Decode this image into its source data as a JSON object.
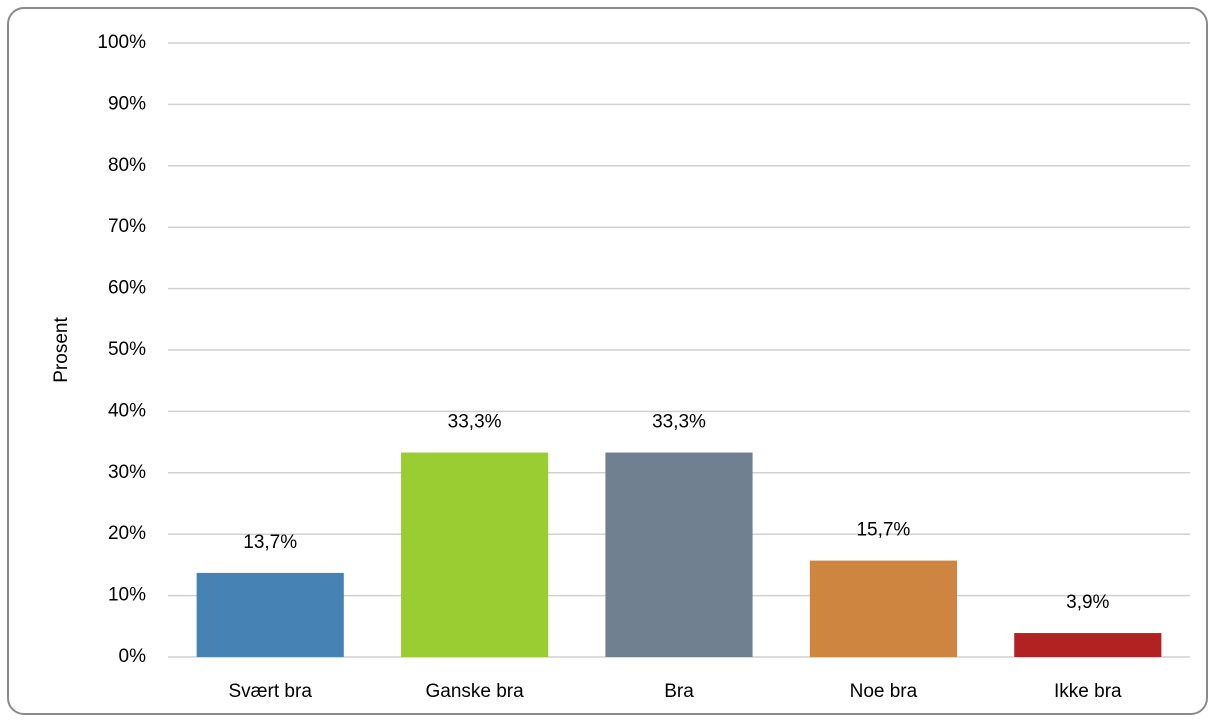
{
  "chart_data": {
    "type": "bar",
    "y_label": "Prosent",
    "categories": [
      "Svært bra",
      "Ganske bra",
      "Bra",
      "Noe bra",
      "Ikke bra"
    ],
    "values": [
      13.7,
      33.3,
      33.3,
      15.7,
      3.9
    ],
    "value_labels": [
      "13,7%",
      "33,3%",
      "33,3%",
      "15,7%",
      "3,9%"
    ],
    "colors": [
      "#4682b4",
      "#9acd32",
      "#708090",
      "#cd853f",
      "#b22222"
    ],
    "ylim": [
      0,
      100
    ],
    "yticks": [
      {
        "value": 0,
        "label": "0%"
      },
      {
        "value": 10,
        "label": "10%"
      },
      {
        "value": 20,
        "label": "20%"
      },
      {
        "value": 30,
        "label": "30%"
      },
      {
        "value": 40,
        "label": "40%"
      },
      {
        "value": 50,
        "label": "50%"
      },
      {
        "value": 60,
        "label": "60%"
      },
      {
        "value": 70,
        "label": "70%"
      },
      {
        "value": 80,
        "label": "80%"
      },
      {
        "value": 90,
        "label": "90%"
      },
      {
        "value": 100,
        "label": "100%"
      }
    ],
    "grid": true
  }
}
